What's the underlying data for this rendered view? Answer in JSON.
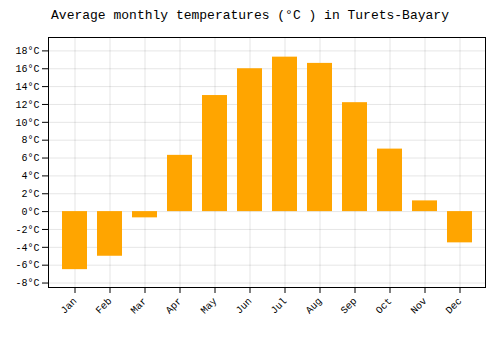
{
  "chart_data": {
    "type": "bar",
    "title": "Average monthly temperatures (°C ) in Turets-Bayary",
    "categories": [
      "Jan",
      "Feb",
      "Mar",
      "Apr",
      "May",
      "Jun",
      "Jul",
      "Aug",
      "Sep",
      "Oct",
      "Nov",
      "Dec"
    ],
    "values": [
      -6.5,
      -5.0,
      -0.7,
      6.3,
      13.0,
      16.0,
      17.3,
      16.6,
      12.2,
      7.0,
      1.2,
      -3.5
    ],
    "color": "#FFA500",
    "ylim": [
      -8.5,
      19.5
    ],
    "yticks": [
      {
        "value": -8,
        "label": "-8°C"
      },
      {
        "value": -6,
        "label": "-6°C"
      },
      {
        "value": -4,
        "label": "-4°C"
      },
      {
        "value": -2,
        "label": "-2°C"
      },
      {
        "value": 0,
        "label": "0°C"
      },
      {
        "value": 2,
        "label": "2°C"
      },
      {
        "value": 4,
        "label": "4°C"
      },
      {
        "value": 6,
        "label": "6°C"
      },
      {
        "value": 8,
        "label": "8°C"
      },
      {
        "value": 10,
        "label": "10°C"
      },
      {
        "value": 12,
        "label": "12°C"
      },
      {
        "value": 14,
        "label": "14°C"
      },
      {
        "value": 16,
        "label": "16°C"
      },
      {
        "value": 18,
        "label": "18°C"
      }
    ],
    "grid": true
  }
}
